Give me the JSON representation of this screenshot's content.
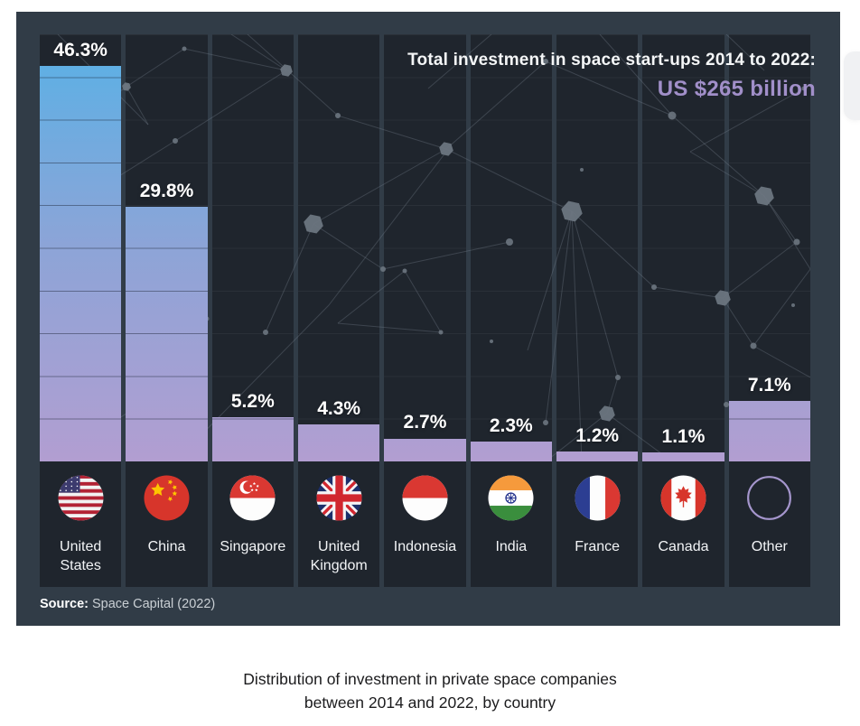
{
  "chart_data": {
    "type": "bar",
    "title": "Total investment in space start-ups 2014 to 2022:",
    "total_label": "US $265 billion",
    "categories": [
      "United States",
      "China",
      "Singapore",
      "United Kingdom",
      "Indonesia",
      "India",
      "France",
      "Canada",
      "Other"
    ],
    "label_lines": [
      [
        "United",
        "States"
      ],
      [
        "China"
      ],
      [
        "Singapore"
      ],
      [
        "United",
        "Kingdom"
      ],
      [
        "Indonesia"
      ],
      [
        "India"
      ],
      [
        "France"
      ],
      [
        "Canada"
      ],
      [
        "Other"
      ]
    ],
    "values": [
      46.3,
      29.8,
      5.2,
      4.3,
      2.7,
      2.3,
      1.2,
      1.1,
      7.1
    ],
    "value_labels": [
      "46.3%",
      "29.8%",
      "5.2%",
      "4.3%",
      "2.7%",
      "2.3%",
      "1.2%",
      "1.1%",
      "7.1%"
    ],
    "flag_icons": [
      "us-flag-icon",
      "china-flag-icon",
      "singapore-flag-icon",
      "uk-flag-icon",
      "indonesia-flag-icon",
      "india-flag-icon",
      "france-flag-icon",
      "canada-flag-icon",
      "other-circle-icon"
    ],
    "ylim": [
      0,
      50
    ],
    "gridline_step_pct": 5,
    "grid": "horizontal lines every 5%, dark panel with constellation decoration",
    "legend_position": "none",
    "source_prefix": "Source:",
    "source_text": "Space Capital (2022)",
    "caption_lines": [
      "Distribution of investment in private space companies",
      "between 2014 and 2022, by country"
    ],
    "colors": {
      "page_bg": "#ffffff",
      "panel_bg": "#313c47",
      "column_bg": "#1f252d",
      "bar_gradient_top": "#58b1e6",
      "bar_gradient_bottom": "#b29ed1",
      "accent_purple": "#a18fc9",
      "label_white": "#ffffff",
      "source_grey": "#c9cfd4",
      "caption_dark": "#1b1b1d"
    }
  }
}
